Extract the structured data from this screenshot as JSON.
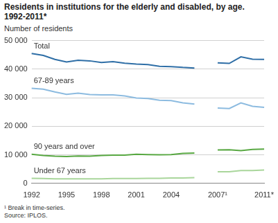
{
  "chart_data": {
    "type": "line",
    "title": "Residents in institutions for the elderly and disabled, by age. 1992-2011*",
    "y_label": "Number of residents",
    "annotations": [
      "¹ Break in time-series.",
      "Source: IPLOS."
    ],
    "categories": [
      "1992",
      null,
      null,
      "1995",
      null,
      null,
      "1998",
      null,
      null,
      "2001",
      null,
      null,
      "2004",
      null,
      null,
      null,
      "2007¹",
      null,
      null,
      null,
      "2011*"
    ],
    "series": [
      {
        "name": "Total",
        "color": "#2e6ea6",
        "values": [
          45500,
          44800,
          43400,
          42500,
          43100,
          42900,
          42300,
          42600,
          42100,
          41800,
          41600,
          41000,
          40900,
          40600,
          40400,
          null,
          42200,
          42000,
          44300,
          43500,
          43400
        ]
      },
      {
        "name": "67-89 years",
        "color": "#8cbbe0",
        "values": [
          33300,
          33000,
          32000,
          31200,
          31600,
          31100,
          31000,
          31000,
          30600,
          29900,
          29700,
          29100,
          29000,
          28200,
          27800,
          null,
          26400,
          26200,
          28200,
          27000,
          26600
        ]
      },
      {
        "name": "90 years and over",
        "color": "#58a842",
        "values": [
          10200,
          9800,
          9500,
          9400,
          9600,
          9500,
          9800,
          9900,
          9900,
          10200,
          10100,
          10000,
          10100,
          10500,
          10600,
          null,
          11700,
          11800,
          11500,
          11900,
          12000
        ]
      },
      {
        "name": "Under 67 years",
        "color": "#a9d69b",
        "values": [
          1800,
          1700,
          1600,
          1600,
          1600,
          1600,
          1600,
          1700,
          1700,
          1700,
          1800,
          1800,
          1900,
          1900,
          2000,
          null,
          4100,
          4100,
          4500,
          4500,
          4700
        ]
      }
    ],
    "ylim": [
      0,
      50000
    ],
    "yticks": [
      0,
      {
        "value": 10000,
        "label": "10 000"
      },
      {
        "value": 20000,
        "label": "20 000"
      },
      {
        "value": 30000,
        "label": "30 000"
      },
      {
        "value": 40000,
        "label": "40 000"
      },
      {
        "value": 50000,
        "label": "50 000"
      }
    ],
    "grid": true
  }
}
